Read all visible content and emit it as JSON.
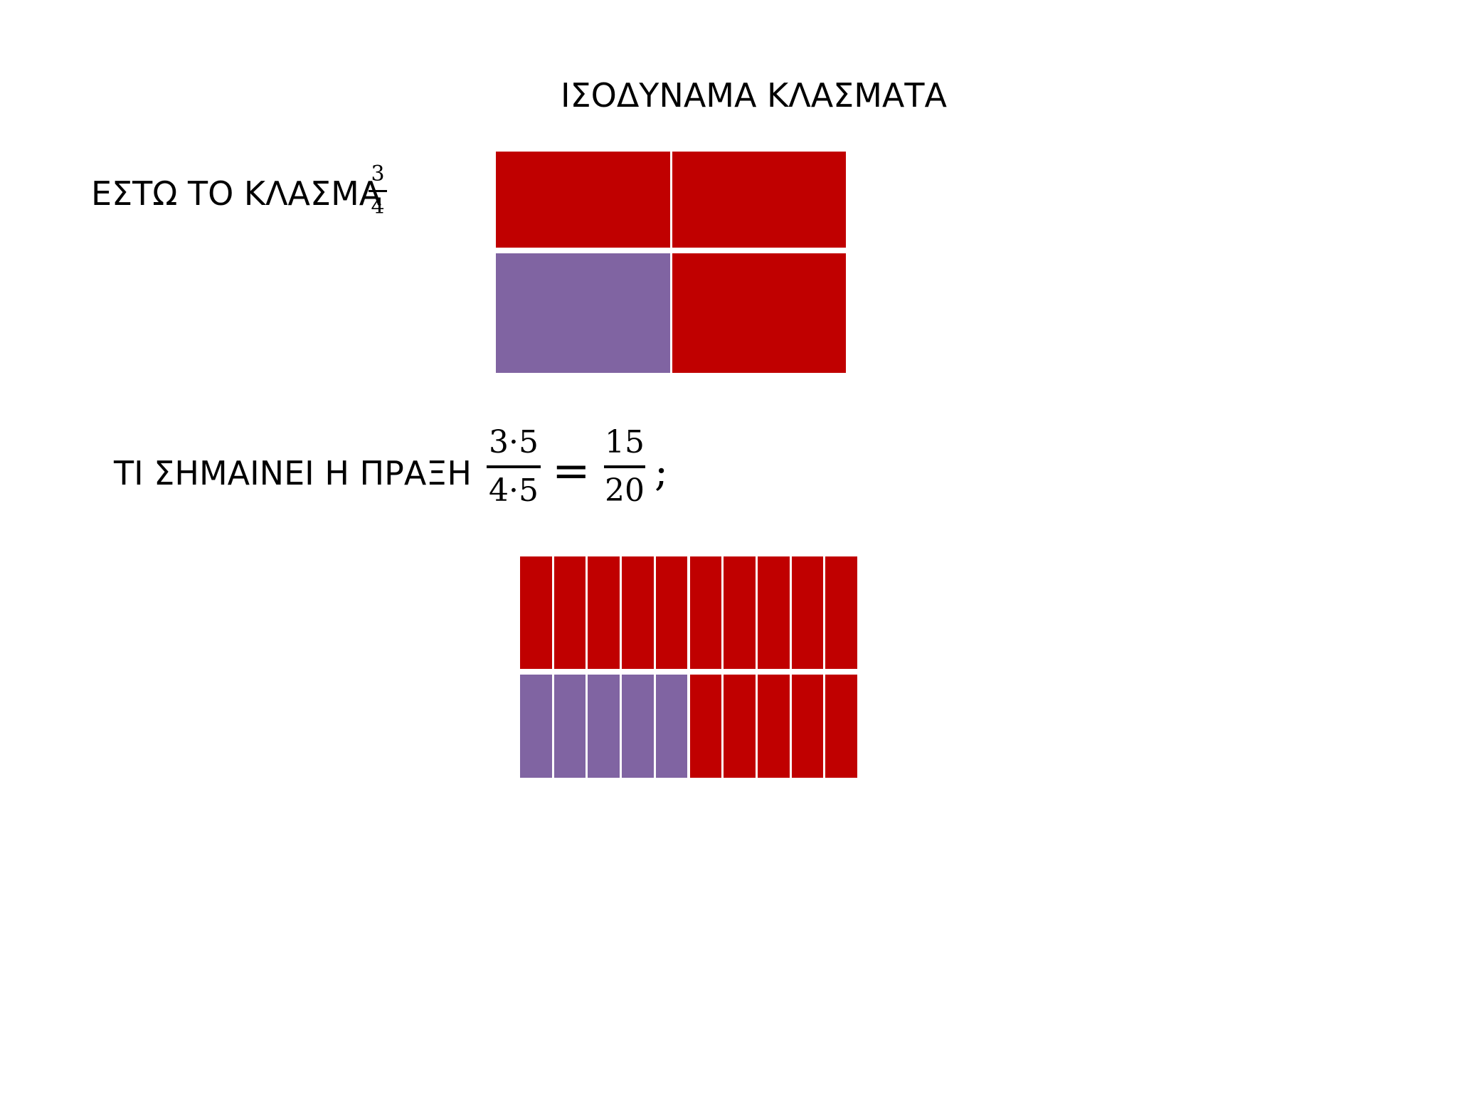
{
  "title": "ΙΣΟΔΥΝΑΜΑ ΚΛΑΣΜΑΤΑ",
  "line1": {
    "text": "ΕΣΤΩ ΤΟ ΚΛΑΣΜΑ",
    "fraction": {
      "numerator": "3",
      "denominator": "4"
    }
  },
  "line2": {
    "text": "ΤΙ ΣΗΜΑΙΝΕΙ  Η  ΠΡΑΞΗ",
    "lhs": {
      "numerator": "3·5",
      "denominator": "4·5"
    },
    "equals": "=",
    "rhs": {
      "numerator": "15",
      "denominator": "20"
    },
    "question_mark": ";"
  },
  "colors": {
    "red": "#C00000",
    "purple": "#8064A2",
    "divider": "#ffffff"
  },
  "model_quarters": {
    "rows": 2,
    "cols": 2,
    "cells": [
      [
        "red",
        "red"
      ],
      [
        "purple",
        "red"
      ]
    ]
  },
  "model_twentieths": {
    "rows": 2,
    "cols": 10,
    "cells": [
      [
        "red",
        "red",
        "red",
        "red",
        "red",
        "red",
        "red",
        "red",
        "red",
        "red"
      ],
      [
        "purple",
        "purple",
        "purple",
        "purple",
        "purple",
        "red",
        "red",
        "red",
        "red",
        "red"
      ]
    ]
  }
}
